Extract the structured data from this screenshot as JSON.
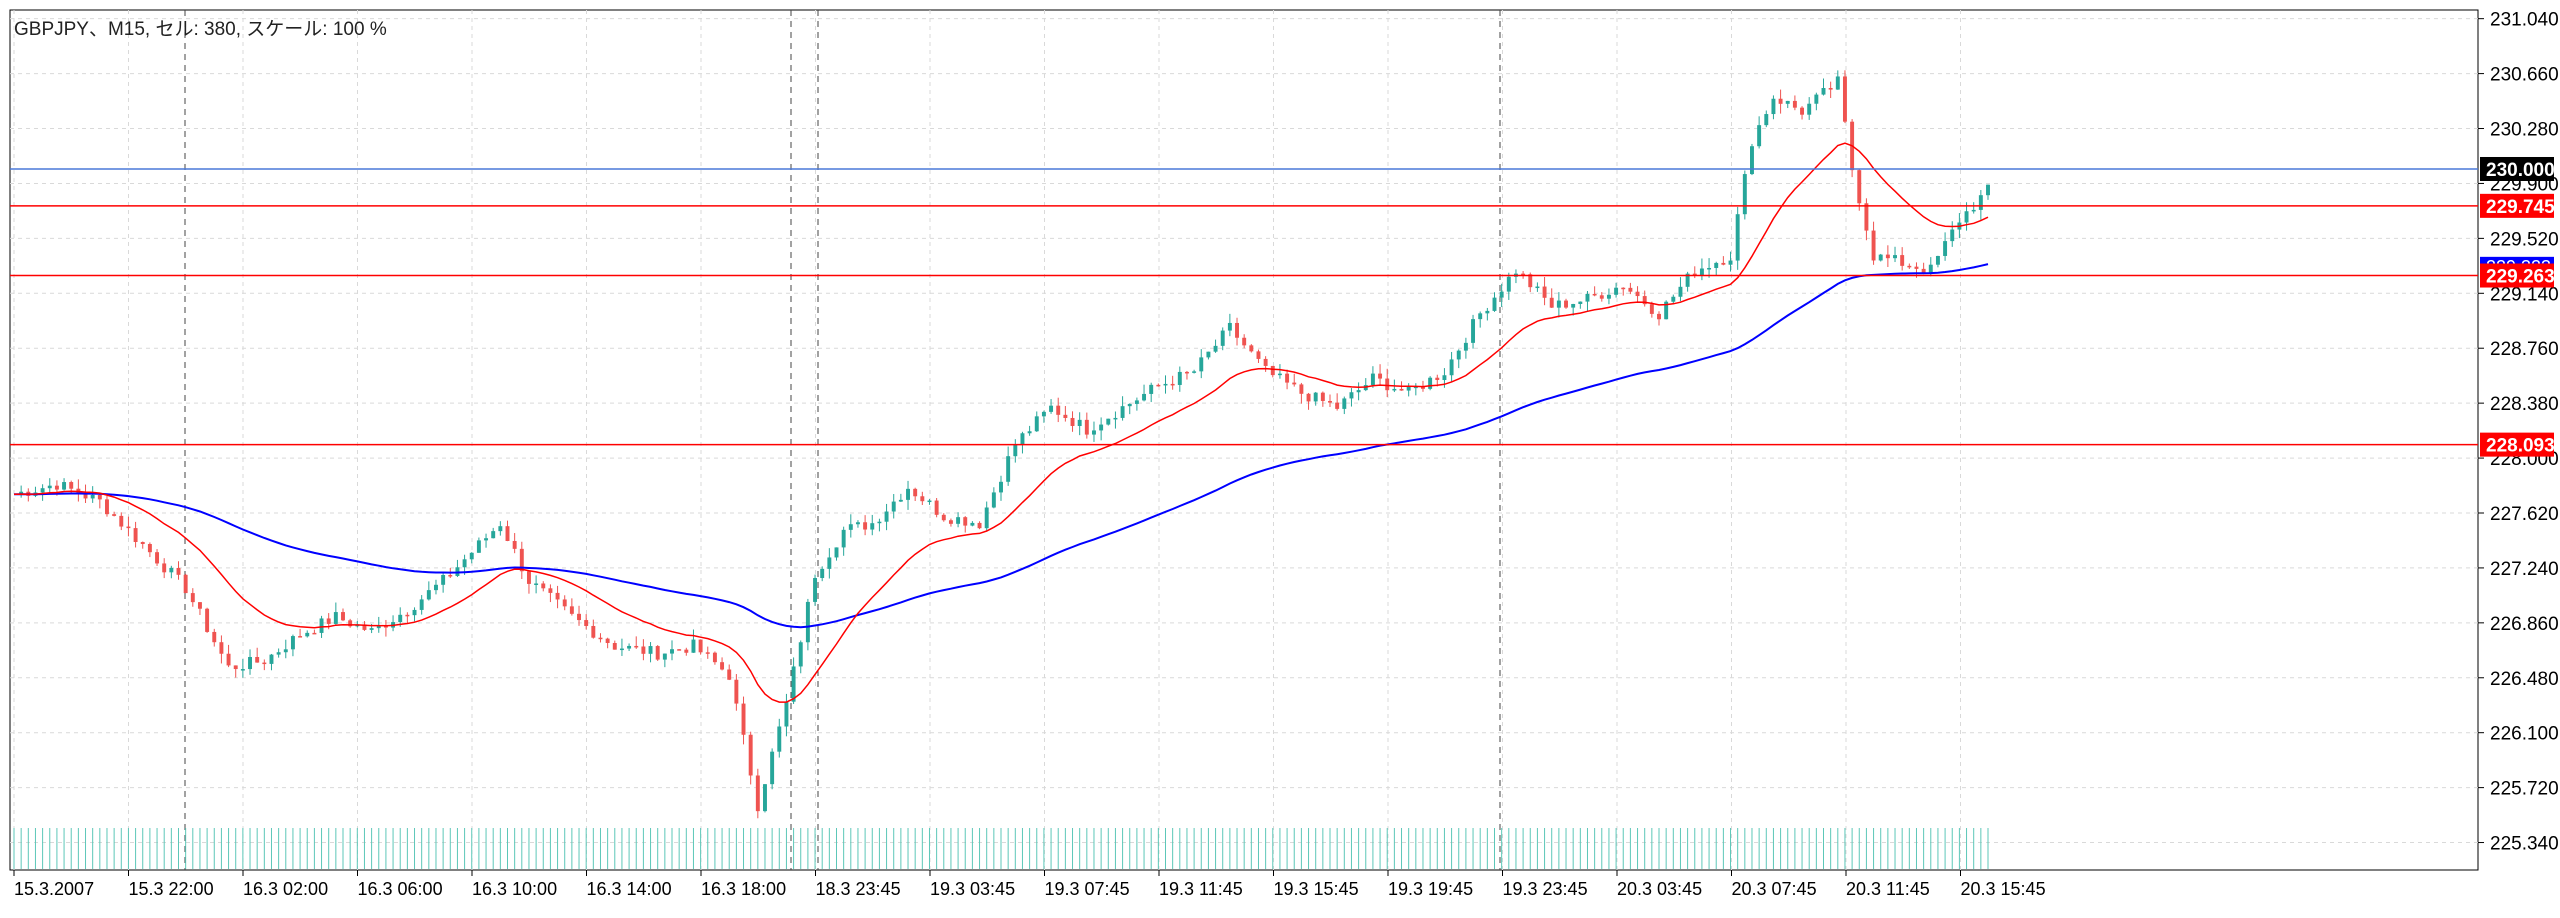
{
  "chart_data": {
    "type": "candlestick",
    "title": "GBPJPY、M15, セル: 380, スケール: 100 %",
    "ylim": [
      225.15,
      231.1
    ],
    "y_ticks": [
      "231.040",
      "230.660",
      "230.280",
      "229.900",
      "229.520",
      "229.140",
      "228.760",
      "228.380",
      "228.000",
      "227.620",
      "227.240",
      "226.860",
      "226.480",
      "226.100",
      "225.720",
      "225.340"
    ],
    "x_ticks": [
      "15.3.2007",
      "15.3 22:00",
      "16.3 02:00",
      "16.3 06:00",
      "16.3 10:00",
      "16.3 14:00",
      "16.3 18:00",
      "18.3 23:45",
      "19.3 03:45",
      "19.3 07:45",
      "19.3 11:45",
      "19.3 15:45",
      "19.3 19:45",
      "19.3 23:45",
      "20.3 03:45",
      "20.3 07:45",
      "20.3 11:45",
      "20.3 15:45"
    ],
    "grid": true,
    "price_lines": [
      {
        "label": "230.000",
        "value": 230.0,
        "color": "#4a78d8",
        "tag_bg": "#000000"
      },
      {
        "label": "229.745",
        "value": 229.745,
        "color": "#ff0000",
        "tag_bg": "#ff0000"
      },
      {
        "label": "229.263",
        "value": 229.263,
        "color": "#ff0000",
        "tag_bg": "#ff0000"
      },
      {
        "label": "228.093",
        "value": 228.093,
        "color": "#ff0000",
        "tag_bg": "#ff0000"
      }
    ],
    "ma_tag": {
      "label": "229.323",
      "value": 229.323,
      "color": "#0000ff"
    },
    "session_separators": [
      15.3,
      16.3,
      18.3,
      19.3
    ],
    "anchors": [
      [
        0,
        227.75
      ],
      [
        6,
        227.82
      ],
      [
        12,
        227.7
      ],
      [
        18,
        227.4
      ],
      [
        24,
        227.1
      ],
      [
        30,
        226.55
      ],
      [
        35,
        226.6
      ],
      [
        40,
        226.78
      ],
      [
        45,
        226.9
      ],
      [
        50,
        226.8
      ],
      [
        55,
        226.95
      ],
      [
        60,
        227.15
      ],
      [
        65,
        227.4
      ],
      [
        68,
        227.55
      ],
      [
        72,
        227.15
      ],
      [
        78,
        226.9
      ],
      [
        84,
        226.7
      ],
      [
        90,
        226.65
      ],
      [
        95,
        226.7
      ],
      [
        100,
        226.5
      ],
      [
        104,
        225.6
      ],
      [
        108,
        226.3
      ],
      [
        112,
        227.2
      ],
      [
        116,
        227.5
      ],
      [
        120,
        227.55
      ],
      [
        125,
        227.8
      ],
      [
        130,
        227.6
      ],
      [
        135,
        227.55
      ],
      [
        140,
        228.1
      ],
      [
        145,
        228.35
      ],
      [
        150,
        228.2
      ],
      [
        155,
        228.35
      ],
      [
        160,
        228.5
      ],
      [
        165,
        228.6
      ],
      [
        170,
        228.9
      ],
      [
        175,
        228.6
      ],
      [
        180,
        228.45
      ],
      [
        185,
        228.35
      ],
      [
        190,
        228.55
      ],
      [
        195,
        228.45
      ],
      [
        200,
        228.6
      ],
      [
        205,
        229.0
      ],
      [
        210,
        229.3
      ],
      [
        215,
        229.05
      ],
      [
        220,
        229.1
      ],
      [
        225,
        229.2
      ],
      [
        230,
        229.0
      ],
      [
        235,
        229.3
      ],
      [
        240,
        229.4
      ],
      [
        243,
        230.2
      ],
      [
        246,
        230.5
      ],
      [
        250,
        230.4
      ],
      [
        255,
        230.6
      ],
      [
        257,
        230.0
      ],
      [
        260,
        229.4
      ],
      [
        264,
        229.35
      ],
      [
        268,
        229.3
      ],
      [
        272,
        229.65
      ],
      [
        276,
        229.85
      ]
    ],
    "volume": "uniform tick volume bars"
  }
}
